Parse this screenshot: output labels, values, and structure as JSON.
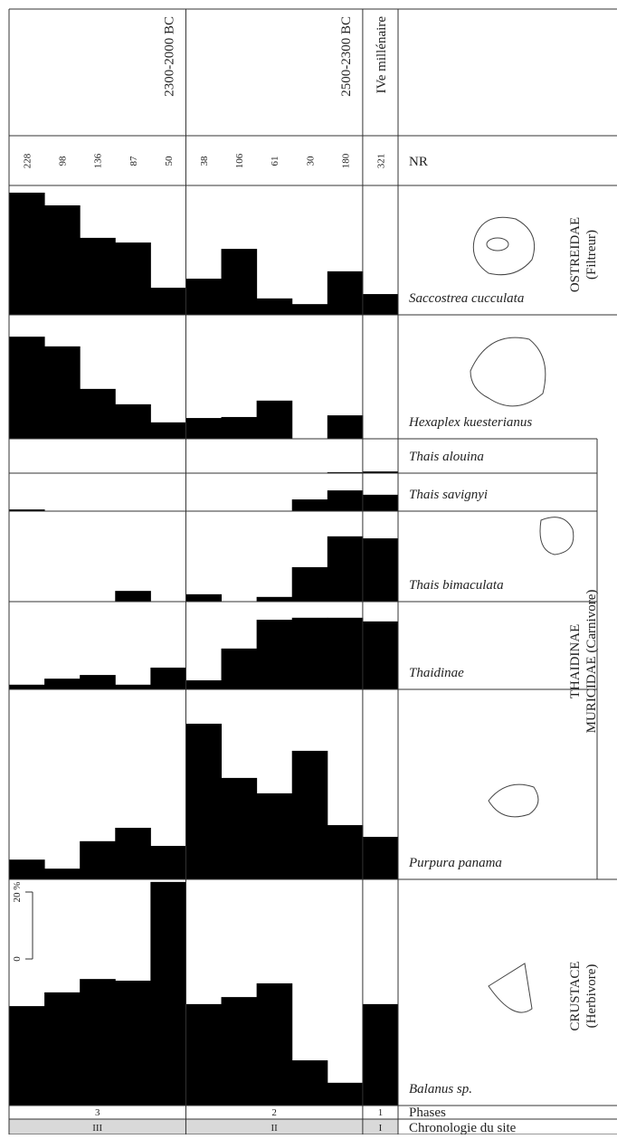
{
  "chart_data": {
    "type": "bar",
    "periods": [
      {
        "label": "2300-2000 BC",
        "span": [
          0,
          4
        ]
      },
      {
        "label": "2500-2300 BC",
        "span": [
          5,
          9
        ]
      },
      {
        "label": "IVe millénaire",
        "span": [
          10,
          10
        ]
      }
    ],
    "nr_label": "NR",
    "nr": [
      228,
      98,
      136,
      87,
      50,
      38,
      106,
      61,
      30,
      180,
      321
    ],
    "color": "#000000",
    "series": [
      {
        "name": "Saccostrea cucculata",
        "values": [
          36.5,
          32.7,
          23,
          21.6,
          8.1,
          10.8,
          19.7,
          4.9,
          3.2,
          13,
          6.2
        ]
      },
      {
        "name": "Hexaplex kuesterianus",
        "values": [
          30.5,
          27.6,
          14.9,
          10.3,
          4.9,
          6.2,
          6.5,
          11.4,
          0,
          7,
          0
        ]
      },
      {
        "name": "Thais alouina",
        "values": [
          0,
          0,
          0,
          0,
          0,
          0,
          0,
          0,
          0,
          0.3,
          0.5
        ]
      },
      {
        "name": "Thais savignyi",
        "values": [
          0.5,
          0,
          0,
          0,
          0,
          0,
          0,
          0,
          3.5,
          6.2,
          4.9
        ]
      },
      {
        "name": "Thais bimaculata",
        "values": [
          0,
          0,
          0,
          3.2,
          0,
          2.2,
          0,
          1.4,
          10.3,
          19.5,
          18.9
        ]
      },
      {
        "name": "Thaidinae",
        "values": [
          1.4,
          3.2,
          4.3,
          1.4,
          6.5,
          2.7,
          12.2,
          20.8,
          21.4,
          21.4,
          20.3
        ]
      },
      {
        "name": "Purpura panama",
        "values": [
          5.9,
          3.2,
          11.4,
          15.4,
          10,
          46.5,
          30.3,
          25.7,
          38.4,
          16.2,
          12.7
        ]
      },
      {
        "name": "Balanus sp.",
        "values": [
          29.7,
          33.8,
          37.8,
          37.3,
          66.8,
          30.3,
          32.4,
          36.5,
          13.5,
          6.8,
          30.3
        ]
      }
    ],
    "groups": [
      {
        "label": "OSTREIDAE",
        "sub": "(Filtreur)"
      },
      {
        "label": "THAIDINAE",
        "sub": "MURICIDAE (Carnivore)"
      },
      {
        "label": "CRUSTACE",
        "sub": "(Herbivore)"
      }
    ],
    "yticks": [
      0,
      {
        "value": 20,
        "label": "20 %"
      }
    ],
    "phases_label": "Phases",
    "phases": [
      "3",
      "2",
      "1"
    ],
    "chronology_label": "Chronologie du site",
    "chronology": [
      "III",
      "II",
      "I"
    ]
  }
}
